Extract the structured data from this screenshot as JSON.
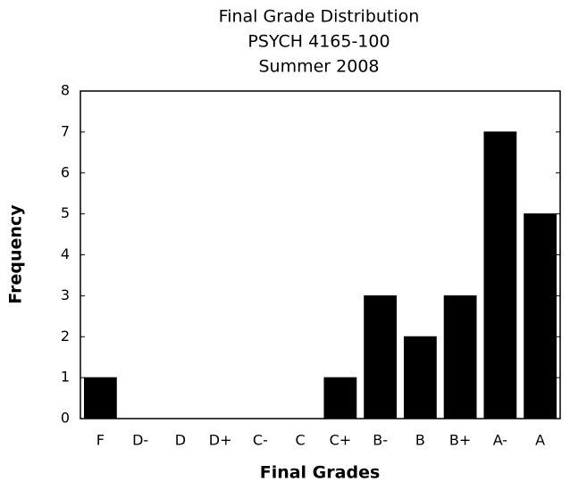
{
  "chart_data": {
    "type": "bar",
    "title": "Final Grade Distribution",
    "subtitles": [
      "PSYCH 4165-100",
      "Summer 2008"
    ],
    "x_label": "Final Grades",
    "y_label": "Frequency",
    "categories": [
      "F",
      "D-",
      "D",
      "D+",
      "C-",
      "C",
      "C+",
      "B-",
      "B",
      "B+",
      "A-",
      "A"
    ],
    "values": [
      1,
      0,
      0,
      0,
      0,
      0,
      1,
      3,
      2,
      3,
      7,
      5
    ],
    "color": "#000000",
    "ylim": [
      0,
      8
    ],
    "yticks": [
      0,
      1,
      2,
      3,
      4,
      5,
      6,
      7,
      8
    ],
    "grid": false
  }
}
